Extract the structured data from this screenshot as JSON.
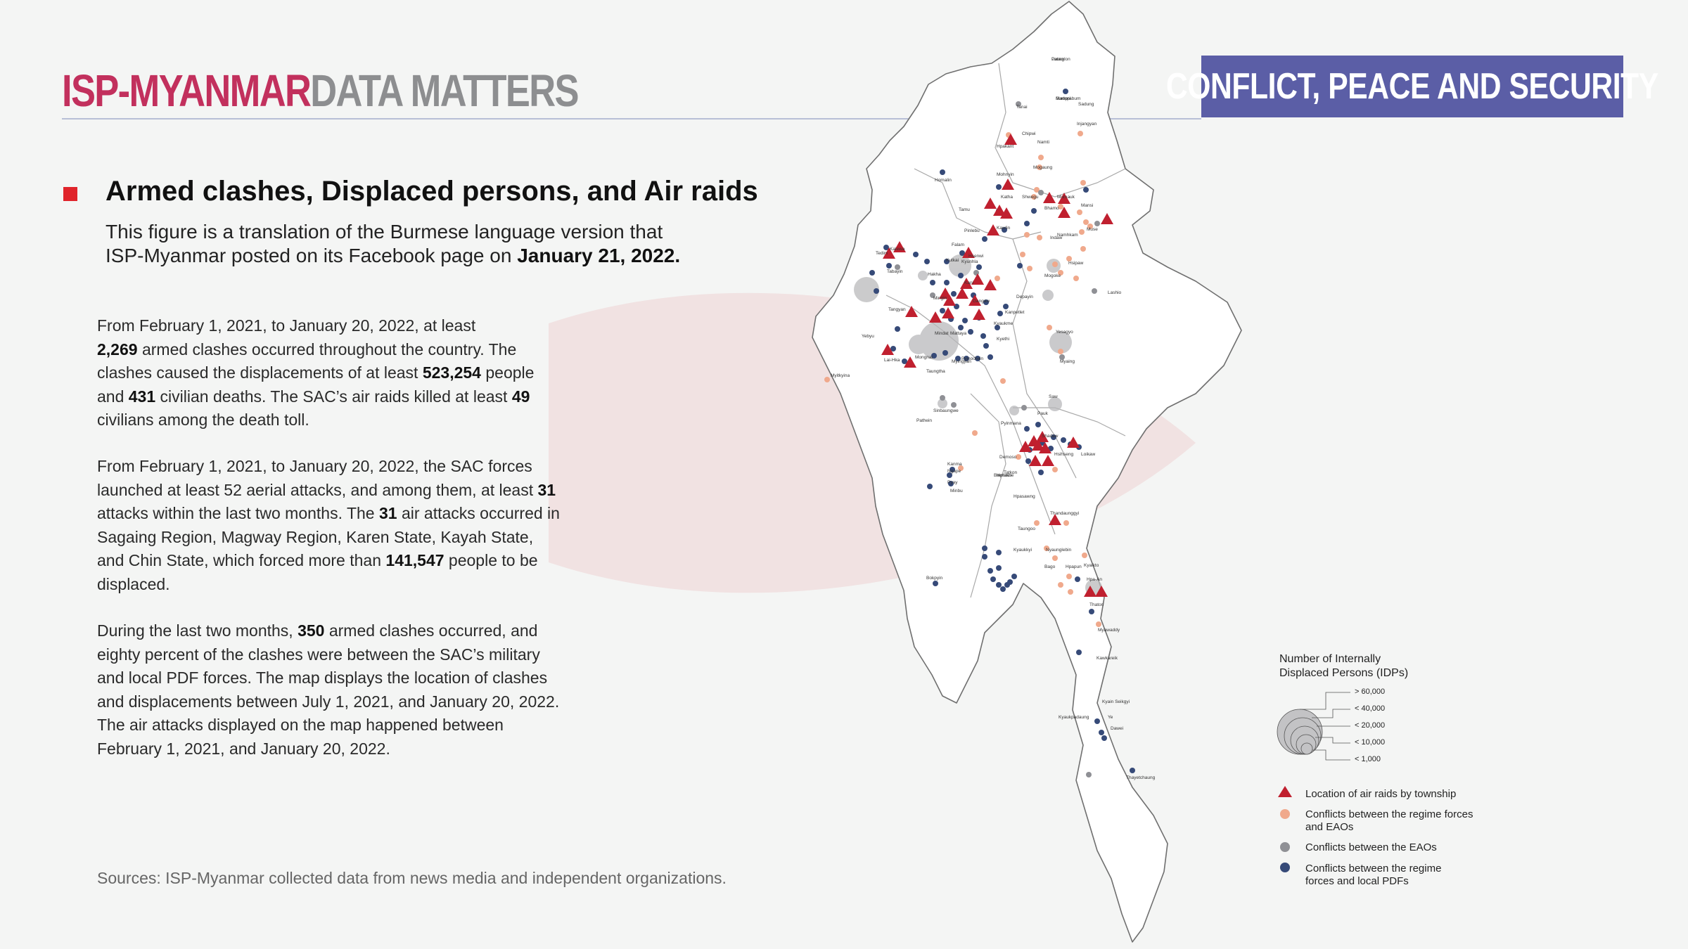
{
  "header": {
    "brand_primary": "ISP-MYANMAR",
    "brand_secondary": "DATA MATTERS",
    "topic_badge": "CONFLICT, PEACE AND SECURITY"
  },
  "title": {
    "heading": "Armed clashes, Displaced persons, and Air raids",
    "subtitle_line1": "This figure is a translation of the Burmese language version that",
    "subtitle_line2_prefix": "ISP-Myanmar posted on its Facebook page on ",
    "subtitle_date": "January 21, 2022."
  },
  "paragraph1": {
    "t1": "From February 1, 2021, to January 20, 2022, at least",
    "n1": "2,269",
    "t2": " armed clashes occurred throughout the country. The clashes caused the displacements of at least ",
    "n2": "523,254",
    "t3": " people and ",
    "n3": "431",
    "t4": " civilian deaths. The SAC’s air raids killed at least ",
    "n4": "49",
    "t5": " civilians among the death toll."
  },
  "paragraph2": {
    "t1": "From February 1, 2021, to January 20, 2022, the SAC forces launched at least 52 aerial attacks, and among them, at least ",
    "n1": "31",
    "t2": " attacks within the last two months. The ",
    "n2": "31",
    "t3": " air attacks occurred in Sagaing Region, Magway Region, Karen State, Kayah State, and Chin State, which forced more than ",
    "n3": "141,547",
    "t4": " people to be displaced."
  },
  "paragraph3": {
    "t1": "During the last two months, ",
    "n1": "350",
    "t2": " armed clashes occurred, and eighty percent of the clashes were between the SAC’s military and local PDF forces. The map displays the location of clashes and displacements between July 1, 2021, and January 20, 2022. The air attacks displayed on the map happened between February 1, 2021, and January 20, 2022."
  },
  "sources": "Sources: ISP-Myanmar collected data from news media and independent organizations.",
  "legend": {
    "idp_title_line1": "Number of Internally",
    "idp_title_line2": "Displaced Persons (IDPs)",
    "idp_sizes": [
      "> 60,000",
      "< 40,000",
      "< 20,000",
      "< 10,000",
      "< 1,000"
    ],
    "air_raids": "Location of air raids by township",
    "regime_eao_line1": "Conflicts between the regime forces",
    "regime_eao_line2": "and EAOs",
    "eao_eao": "Conflicts between the EAOs",
    "regime_pdf_line1": "Conflicts between the regime",
    "regime_pdf_line2": "forces and local PDFs"
  },
  "colors": {
    "brand_pink": "#c2305d",
    "brand_grey": "#8d8e90",
    "badge_purple": "#5b5ea6",
    "air_raid_red": "#c0202f",
    "eao_orange": "#f0a98c",
    "eao_grey": "#8f9095",
    "pdf_navy": "#364a78",
    "idp_circle": "#b9b9bb"
  },
  "map_labels": [
    "Putao",
    "Sumprabum",
    "Tanai",
    "Injangyan",
    "Hpakant",
    "Namti",
    "Mogaung",
    "Homalin",
    "Mohnyin",
    "Katha",
    "Shwegu",
    "Momauk",
    "Bhamo",
    "Mansi",
    "Muse",
    "Namhkam",
    "Tamu",
    "Pinlebu",
    "Kawlin",
    "Indaw",
    "Kutkai",
    "Kalewa",
    "Tedim",
    "Falam",
    "Kyunhla",
    "Tabayin",
    "Hakha",
    "Mingin",
    "Kani",
    "Depayin",
    "Mogoke",
    "Hsipaw",
    "Lashio",
    "Tangyan",
    "Gangaw",
    "Kyaukme",
    "Kyethi",
    "Mindat",
    "Kanpetlet",
    "Yesagyo",
    "Myaing",
    "Mattaya",
    "Pyinoolwin",
    "Mongnai",
    "Lai-Hka",
    "Myingyan",
    "Taungtha",
    "Saw",
    "Pauk",
    "Hsihseng",
    "Loikaw",
    "Demoso",
    "Shadaw",
    "Hpruso",
    "Bawlakhe",
    "Thandaunggyi",
    "Hpasawng",
    "Taungoo",
    "Kyaukkyi",
    "Nyaunglebin",
    "Hpapun",
    "Bago",
    "Kyaikto",
    "Hpa-An",
    "Thaton",
    "Myawaddy",
    "Kawkareik",
    "Kyain Seikgyi",
    "Ye",
    "Dawei",
    "Thayetchaung",
    "Bokpyin",
    "Pathein",
    "Ngape",
    "Minbu",
    "Pyinmana",
    "Tatkon",
    "Kanma",
    "Pyay",
    "Sinbaungwe",
    "Hsenwi",
    "Chipwi",
    "Sadung",
    "Kyaukpadaung",
    "Myitkyina",
    "Yebyu",
    "Launglon",
    "Madupi"
  ]
}
